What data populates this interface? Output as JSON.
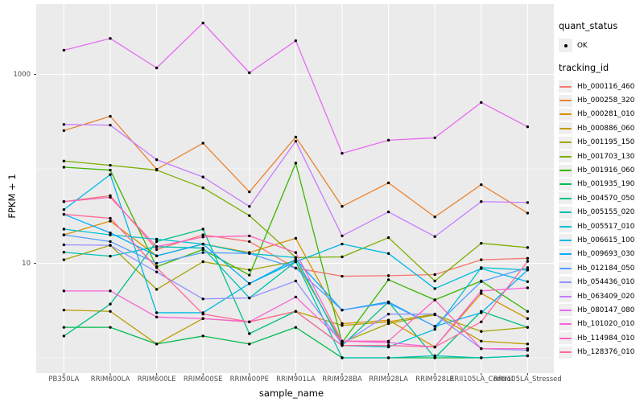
{
  "figure": {
    "x_title": "sample_name",
    "y_title": "FPKM + 1",
    "legend": {
      "quant_status_title": "quant_status",
      "quant_status_items": [
        "OK"
      ],
      "tracking_id_title": "tracking_id"
    }
  },
  "chart_data": {
    "type": "line",
    "title": "",
    "xlabel": "sample_name",
    "ylabel": "FPKM + 1",
    "y_scale": "log10",
    "y_ticks": [
      10,
      1000
    ],
    "y_minor_gridlines": [
      1,
      100
    ],
    "ylim": [
      0.66,
      5500
    ],
    "grid": true,
    "legend_position": "right",
    "panel_color": "#EBEBEB",
    "grid_color": "#FFFFFF",
    "point_color": "#000000",
    "point_status": "OK",
    "categories": [
      "PB350LA",
      "RRIM600LA",
      "RRIM600LE",
      "RRIM600SE",
      "RRIM600PE",
      "RRIM901LA",
      "RRIM928BA",
      "RRIM928LA",
      "RRIM928LE",
      "RRII105LA_Control",
      "RRII105LA_Stressed"
    ],
    "series": [
      {
        "name": "Hb_000116_460",
        "color": "#F8766D",
        "values": [
          45,
          52,
          14,
          20,
          17,
          8.9,
          7.3,
          7.4,
          7.6,
          10.9,
          11.3
        ]
      },
      {
        "name": "Hb_000258_320",
        "color": "#EA8331",
        "values": [
          254,
          360,
          99,
          187,
          57,
          217,
          40,
          71,
          31,
          68,
          34
        ]
      },
      {
        "name": "Hb_000281_010",
        "color": "#D89000",
        "values": [
          20,
          28,
          12,
          16,
          13,
          18.4,
          2.3,
          2.5,
          1.3,
          4.8,
          2.6
        ]
      },
      {
        "name": "Hb_000886_060",
        "color": "#C09B00",
        "values": [
          3.2,
          3.1,
          1.4,
          2.6,
          2.4,
          3.1,
          2.2,
          2.4,
          2.9,
          1.5,
          1.4
        ]
      },
      {
        "name": "Hb_001195_150",
        "color": "#A3A500",
        "values": [
          10.9,
          15.5,
          5.3,
          10.4,
          8.5,
          10.5,
          1.45,
          2.3,
          2.85,
          1.9,
          2.1
        ]
      },
      {
        "name": "Hb_001703_130",
        "color": "#7CAE00",
        "values": [
          121,
          109,
          97,
          63,
          32,
          11.5,
          11.7,
          18.7,
          6.5,
          16.3,
          14.7
        ]
      },
      {
        "name": "Hb_001916_060",
        "color": "#39B600",
        "values": [
          104,
          97,
          9.2,
          14,
          7.5,
          115,
          1.45,
          6.7,
          4.1,
          6.5,
          3.1
        ]
      },
      {
        "name": "Hb_001935_190",
        "color": "#00BB4E",
        "values": [
          2.1,
          2.1,
          1.4,
          1.7,
          1.4,
          2.1,
          1.0,
          1.0,
          1.0,
          1.0,
          1.05
        ]
      },
      {
        "name": "Hb_004570_050",
        "color": "#00C087",
        "values": [
          1.7,
          3.7,
          17,
          23,
          1.8,
          3.1,
          1.35,
          3.9,
          1.0,
          3.1,
          2.1
        ]
      },
      {
        "name": "Hb_005155_020",
        "color": "#00C0B2",
        "values": [
          13.1,
          11.9,
          15,
          14.5,
          4.3,
          10.4,
          1.0,
          1.0,
          1.05,
          1.0,
          1.05
        ]
      },
      {
        "name": "Hb_005517_010",
        "color": "#00BFD4",
        "values": [
          23,
          20,
          18,
          16,
          12.7,
          11.5,
          1.35,
          1.3,
          2.0,
          9.0,
          8.5
        ]
      },
      {
        "name": "Hb_006615_100",
        "color": "#00B9E3",
        "values": [
          37,
          87,
          3.0,
          3.0,
          6.1,
          10.4,
          16,
          12.7,
          5.4,
          8.8,
          6.4
        ]
      },
      {
        "name": "Hb_009693_030",
        "color": "#00ACFC",
        "values": [
          33,
          21,
          12,
          16,
          6.1,
          11,
          3.2,
          3.9,
          2.15,
          3.0,
          8.5
        ]
      },
      {
        "name": "Hb_012184_050",
        "color": "#529EFF",
        "values": [
          20,
          17,
          10,
          13,
          12.7,
          8.9,
          3.2,
          3.8,
          2.15,
          6.4,
          9.0
        ]
      },
      {
        "name": "Hb_054436_010",
        "color": "#9590FF",
        "values": [
          15.7,
          15.5,
          8.1,
          4.2,
          4.3,
          6.5,
          1.4,
          2.9,
          2.9,
          1.25,
          1.2
        ]
      },
      {
        "name": "Hb_063409_020",
        "color": "#C77CFF",
        "values": [
          295,
          290,
          125,
          82,
          40,
          196,
          19.5,
          35,
          19.2,
          45,
          44
        ]
      },
      {
        "name": "Hb_080147_080",
        "color": "#E76BF3",
        "values": [
          1800,
          2400,
          1170,
          3500,
          1040,
          2270,
          146,
          201,
          213,
          504,
          279
        ]
      },
      {
        "name": "Hb_101020_010",
        "color": "#FA62DB",
        "values": [
          5.1,
          5.1,
          2.7,
          2.6,
          2.4,
          4.4,
          1.5,
          1.45,
          1.3,
          5.1,
          5.5
        ]
      },
      {
        "name": "Hb_114984_010",
        "color": "#FF62BC",
        "values": [
          45,
          50,
          15,
          19,
          19.5,
          13,
          1.5,
          1.5,
          4.1,
          1.25,
          1.25
        ]
      },
      {
        "name": "Hb_128376_010",
        "color": "#FF6A98",
        "values": [
          33,
          30,
          9,
          2.9,
          2.4,
          3.1,
          1.35,
          1.35,
          1.3,
          2.4,
          10.5
        ]
      }
    ]
  }
}
